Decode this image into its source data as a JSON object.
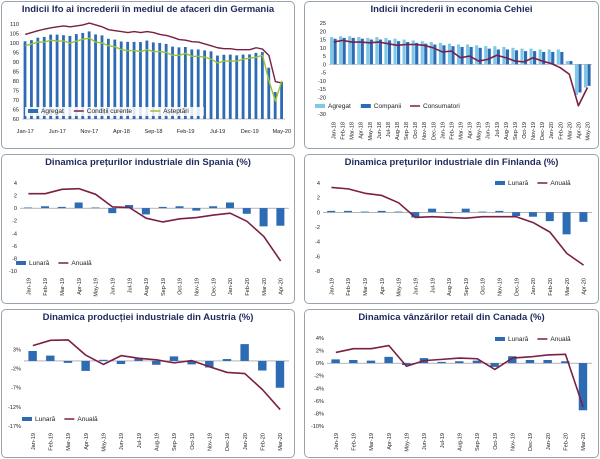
{
  "chart_data": [
    {
      "type": "bar+line",
      "title": "Indicii Ifo ai încrederii în mediul de afaceri din Germania",
      "categories": [
        "Jan-17",
        "Feb-17",
        "Mar-17",
        "Apr-17",
        "May-17",
        "Jun-17",
        "Jul-17",
        "Aug-17",
        "Sep-17",
        "Oct-17",
        "Nov-17",
        "Dec-17",
        "Jan-18",
        "Feb-18",
        "Mar-18",
        "Apr-18",
        "May-18",
        "Jun-18",
        "Jul-18",
        "Aug-18",
        "Sep-18",
        "Oct-18",
        "Nov-18",
        "Dec-18",
        "Jan-19",
        "Feb-19",
        "Mar-19",
        "Apr-19",
        "May-19",
        "Jun-19",
        "Jul-19",
        "Aug-19",
        "Sep-19",
        "Oct-19",
        "Nov-19",
        "Dec-19",
        "Jan-20",
        "Feb-20",
        "Mar-20",
        "Apr-20",
        "May-20"
      ],
      "tick_labels": [
        "Jan-17",
        "Jun-17",
        "Nov-17",
        "Apr-18",
        "Sep-18",
        "Feb-19",
        "Jul-19",
        "Dec-19",
        "May-20"
      ],
      "ylim": [
        60,
        110
      ],
      "yticks": [
        60,
        65,
        70,
        75,
        80,
        85,
        90,
        95,
        100,
        105,
        110
      ],
      "bar_base": 60,
      "series": [
        {
          "name": "Agregat",
          "kind": "bar",
          "color": "#2e6bb5",
          "values": [
            100.9,
            101.5,
            102.8,
            103.2,
            104.4,
            104.4,
            104.1,
            103.7,
            104.7,
            105.3,
            106.1,
            104.5,
            104.0,
            102.2,
            101.8,
            100.8,
            100.6,
            100.6,
            100.5,
            101.3,
            100.3,
            100.0,
            99.5,
            98.1,
            97.7,
            97.9,
            96.6,
            96.6,
            96.1,
            95.6,
            93.4,
            93.8,
            93.9,
            93.5,
            93.9,
            94.0,
            94.8,
            95.2,
            87.0,
            74.2,
            79.5
          ]
        },
        {
          "name": "Condiții curente",
          "kind": "line",
          "color": "#7a1f45",
          "values": [
            104.5,
            105.5,
            106.5,
            107.3,
            108.0,
            108.5,
            109.0,
            108.5,
            109.0,
            109.5,
            110.5,
            109.5,
            108.5,
            107.0,
            106.5,
            106.0,
            105.5,
            106.0,
            105.5,
            106.0,
            105.5,
            104.5,
            104.0,
            103.0,
            101.8,
            101.5,
            100.7,
            100.5,
            99.5,
            98.5,
            97.5,
            97.0,
            97.0,
            96.5,
            96.5,
            96.5,
            97.5,
            96.8,
            93.4,
            79.7,
            78.9
          ]
        },
        {
          "name": "Așteptări",
          "kind": "line",
          "color": "#9dc236",
          "values": [
            98.5,
            99.5,
            100.5,
            100.5,
            101.5,
            101.0,
            101.0,
            100.0,
            101.0,
            102.0,
            102.5,
            100.5,
            100.0,
            98.5,
            98.0,
            96.5,
            96.0,
            96.0,
            95.5,
            96.5,
            95.5,
            95.5,
            95.0,
            93.5,
            93.5,
            94.5,
            93.0,
            93.0,
            92.5,
            91.5,
            89.5,
            90.5,
            90.5,
            90.5,
            91.5,
            92.0,
            92.5,
            93.5,
            80.1,
            69.4,
            80.1
          ]
        }
      ],
      "legend": [
        "Agregat",
        "Condiții curente",
        "Așteptări"
      ],
      "legend_position": "bottom"
    },
    {
      "type": "bar+line",
      "title": "Indicii încrederii în economia Cehiei",
      "categories": [
        "Jan-18",
        "Feb-18",
        "Mar-18",
        "Apr-18",
        "May-18",
        "Jun-18",
        "Jul-18",
        "Aug-18",
        "Sep-18",
        "Oct-18",
        "Nov-18",
        "Dec-18",
        "Jan-19",
        "Feb-19",
        "Mar-19",
        "Apr-19",
        "May-19",
        "Jun-19",
        "Jul-19",
        "Aug-19",
        "Sep-19",
        "Oct-19",
        "Nov-19",
        "Dec-19",
        "Jan-20",
        "Feb-20",
        "Mar-20",
        "Apr-20",
        "May-20"
      ],
      "tick_labels": [
        "Jan-18",
        "Feb-18",
        "Mar-18",
        "Apr-18",
        "May-18",
        "Jun-18",
        "Jul-18",
        "Aug-18",
        "Sep-18",
        "Oct-18",
        "Nov-18",
        "Dec-18",
        "Jan-19",
        "Feb-19",
        "Mar-19",
        "Apr-19",
        "May-19",
        "Jun-19",
        "Jul-19",
        "Aug-19",
        "Sep-19",
        "Oct-19",
        "Nov-19",
        "Dec-19",
        "Jan-20",
        "Feb-20",
        "Mar-20",
        "Apr-20",
        "May-20"
      ],
      "ylim": [
        -30,
        25
      ],
      "yticks": [
        -30,
        -25,
        -20,
        -15,
        -10,
        -5,
        0,
        5,
        10,
        15,
        20,
        25
      ],
      "bar_base": 0,
      "series": [
        {
          "name": "Agregat",
          "kind": "bar",
          "color": "#7ec8e8",
          "values": [
            16.5,
            17,
            17,
            16.5,
            16,
            16.5,
            16,
            15.5,
            15,
            14.5,
            14,
            13.5,
            13,
            12.5,
            12,
            12,
            11.5,
            11,
            11,
            10.5,
            10,
            9.5,
            9.5,
            9,
            9,
            9,
            2,
            -18.5,
            -14
          ]
        },
        {
          "name": "Companii",
          "kind": "bar",
          "color": "#2e6bb5",
          "values": [
            15.5,
            16,
            16,
            15.5,
            15,
            15,
            14.5,
            14,
            13.5,
            13,
            12.5,
            12,
            11.5,
            11,
            10.5,
            10.5,
            10,
            9.5,
            9,
            9,
            8.5,
            8,
            8,
            7.5,
            7.5,
            7.5,
            2,
            -17,
            -13
          ]
        },
        {
          "name": "Consumatori",
          "kind": "line",
          "color": "#7a1f45",
          "values": [
            13.5,
            14.5,
            13.5,
            13.5,
            13,
            13.5,
            12.5,
            11.5,
            12,
            12,
            11.5,
            10,
            7.5,
            8,
            4,
            5,
            2,
            3,
            5.5,
            4,
            2,
            1.5,
            4,
            2,
            0.5,
            -2,
            -6,
            -25,
            -14
          ]
        }
      ],
      "legend": [
        "Agregat",
        "Companii",
        "Consumatori"
      ],
      "legend_position": "bottom"
    },
    {
      "type": "bar+line",
      "title": "Dinamica prețurilor industriale din Spania (%)",
      "categories": [
        "Jan-19",
        "Feb-19",
        "Mar-19",
        "Apr-19",
        "May-19",
        "Jun-19",
        "Jul-19",
        "Aug-19",
        "Sep-19",
        "Oct-19",
        "Nov-19",
        "Dec-19",
        "Jan-20",
        "Feb-20",
        "Mar-20",
        "Apr-20"
      ],
      "ylim": [
        -10,
        4
      ],
      "yticks": [
        -10,
        -8,
        -6,
        -4,
        -2,
        0,
        2,
        4
      ],
      "bar_base": 0,
      "series": [
        {
          "name": "Lunară",
          "kind": "bar",
          "color": "#2e6bb5",
          "values": [
            0.1,
            0.3,
            0.2,
            0.9,
            0.1,
            -0.8,
            0.5,
            -1.0,
            0.2,
            0.3,
            -0.4,
            0.3,
            0.9,
            -0.9,
            -2.9,
            -2.8
          ]
        },
        {
          "name": "Anuală",
          "kind": "line",
          "color": "#7a1f45",
          "values": [
            2.3,
            2.3,
            3.0,
            3.1,
            2.2,
            0.2,
            0.1,
            -1.6,
            -2.2,
            -1.7,
            -1.5,
            -1.1,
            -0.8,
            -2.1,
            -4.5,
            -8.4
          ]
        }
      ],
      "legend": [
        "Lunară",
        "Anuală"
      ],
      "legend_position": "bottom-left"
    },
    {
      "type": "bar+line",
      "title": "Dinamica prețurilor industriale din Finlanda (%)",
      "categories": [
        "Jan-19",
        "Feb-19",
        "Mar-19",
        "Apr-19",
        "May-19",
        "Jun-19",
        "Jul-19",
        "Aug-19",
        "Sep-19",
        "Oct-19",
        "Nov-19",
        "Dec-19",
        "Jan-20",
        "Feb-20",
        "Mar-20",
        "Apr-20"
      ],
      "ylim": [
        -8,
        4
      ],
      "yticks": [
        -8,
        -6,
        -4,
        -2,
        0,
        2,
        4
      ],
      "bar_base": 0,
      "series": [
        {
          "name": "Lunară",
          "kind": "bar",
          "color": "#2e6bb5",
          "values": [
            0.2,
            0.2,
            0.1,
            0.2,
            0.1,
            -0.7,
            0.5,
            -0.1,
            0.5,
            0.1,
            0.2,
            -0.5,
            -0.6,
            -1.2,
            -3.0,
            -1.3
          ]
        },
        {
          "name": "Anuală",
          "kind": "line",
          "color": "#7a1f45",
          "values": [
            3.4,
            3.2,
            2.6,
            2.3,
            1.3,
            -0.7,
            -0.6,
            -0.7,
            -0.8,
            -0.6,
            -0.6,
            -0.6,
            -1.4,
            -2.7,
            -5.6,
            -7.2
          ]
        }
      ],
      "legend": [
        "Lunară",
        "Anuală"
      ],
      "legend_position": "top-right"
    },
    {
      "type": "bar+line",
      "title": "Dinamica producției industriale din Austria (%)",
      "categories": [
        "Jan-19",
        "Feb-19",
        "Mar-19",
        "Apr-19",
        "May-19",
        "Jun-19",
        "Jul-19",
        "Aug-19",
        "Sep-19",
        "Oct-19",
        "Nov-19",
        "Dec-19",
        "Jan-20",
        "Feb-20",
        "Mar-20"
      ],
      "ylim": [
        -17,
        6
      ],
      "yticks": [
        -17,
        -12,
        -7,
        -2,
        3
      ],
      "ytick_labels": [
        "-17%",
        "-12%",
        "-7%",
        "-2%",
        "3%"
      ],
      "bar_base": 0,
      "series": [
        {
          "name": "Lunară",
          "kind": "bar",
          "color": "#2e6bb5",
          "values": [
            2.6,
            1.4,
            -0.5,
            -2.6,
            0.3,
            -0.8,
            0.6,
            -1.0,
            1.2,
            -0.9,
            -1.7,
            0.5,
            4.4,
            -2.5,
            -7.0
          ]
        },
        {
          "name": "Anuală",
          "kind": "line",
          "color": "#7a1f45",
          "values": [
            4.0,
            5.4,
            5.5,
            1.5,
            -0.9,
            1.4,
            0.7,
            0.3,
            -0.5,
            0.1,
            -1.5,
            -3.0,
            -3.3,
            -7.5,
            -12.7
          ]
        }
      ],
      "legend": [
        "Lunară",
        "Anuală"
      ],
      "legend_position": "bottom-left"
    },
    {
      "type": "bar+line",
      "title": "Dinamica vânzărilor retail din Canada (%)",
      "categories": [
        "Jan-19",
        "Feb-19",
        "Mar-19",
        "Apr-19",
        "May-19",
        "Jun-19",
        "Jul-19",
        "Aug-19",
        "Sep-19",
        "Oct-19",
        "Nov-19",
        "Dec-19",
        "Jan-20",
        "Feb-20",
        "Mar-20"
      ],
      "ylim": [
        -10,
        4
      ],
      "yticks": [
        -10,
        -8,
        -6,
        -4,
        -2,
        0,
        2,
        4
      ],
      "ytick_labels": [
        "-10%",
        "-8%",
        "-6%",
        "-4%",
        "-2%",
        "0%",
        "2%",
        "4%"
      ],
      "bar_base": 0,
      "series": [
        {
          "name": "Lunară",
          "kind": "bar",
          "color": "#2e6bb5",
          "values": [
            0.6,
            0.5,
            0.4,
            1.0,
            -0.3,
            0.8,
            0.2,
            0.3,
            0.4,
            -0.6,
            1.1,
            0.5,
            0.5,
            0.3,
            -7.5
          ]
        },
        {
          "name": "Anuală",
          "kind": "line",
          "color": "#7a1f45",
          "values": [
            1.7,
            2.3,
            2.3,
            2.8,
            -0.5,
            0.4,
            0.6,
            0.8,
            0.7,
            -1.0,
            0.8,
            1.0,
            1.3,
            1.4,
            -7.0
          ]
        }
      ],
      "legend": [
        "Lunară",
        "Anuală"
      ],
      "legend_position": "top-right"
    }
  ]
}
